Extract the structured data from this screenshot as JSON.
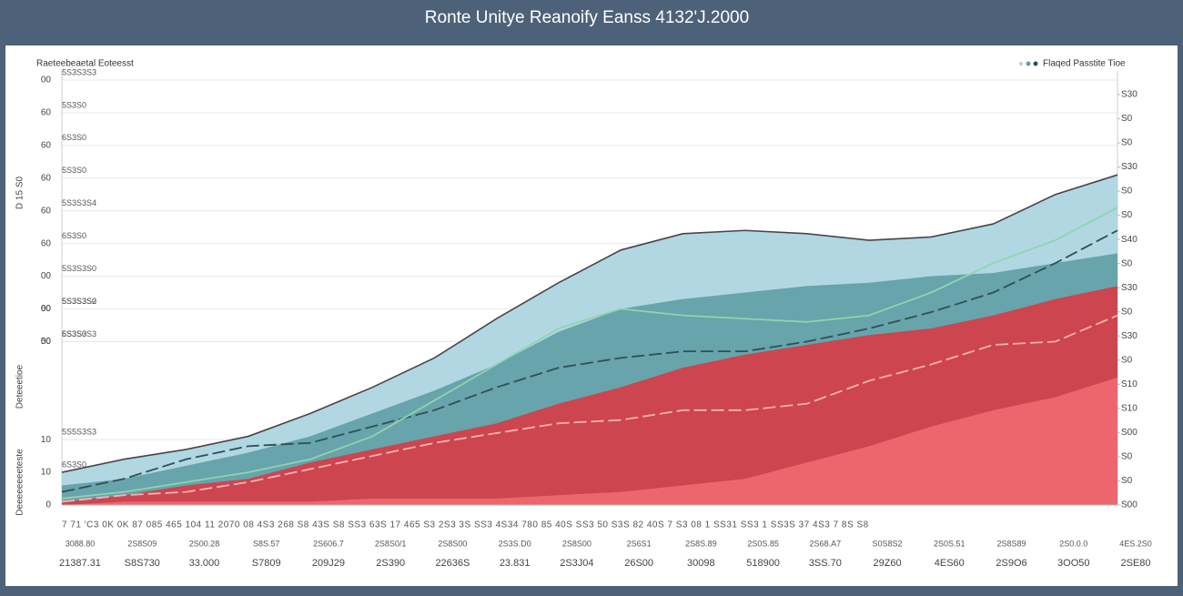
{
  "chart_data": {
    "type": "area",
    "title": "Ronte Unitye Reanoify Eanss 4132'J.2000",
    "subtitle": "Raeteebeaetal Eoteesst",
    "legend": {
      "label": "Flaqed Passtite Tioe",
      "position": "upper right"
    },
    "ylabel_parts": [
      "D 15 S0",
      "Deteeetioe",
      "Deeeeeeeeteste"
    ],
    "categories": [
      "21387.31",
      "S8S730",
      "33.000",
      "S7809",
      "209J29",
      "2S390",
      "22636S",
      "23.831",
      "2S3J04",
      "26S00",
      "30098",
      "518900",
      "3SS.70",
      "29Z60",
      "4ES60",
      "2S9O6",
      "3OO50",
      "2SE80"
    ],
    "x_sublabels": [
      "3088.80",
      "2S8S09",
      "2S00.28",
      "S8S.57",
      "2S606.7",
      "2S8S0/1",
      "2S8S00",
      "2S3S.D0",
      "2S8S00",
      "2S6S1",
      "2S8S.89",
      "2S0S.85",
      "2S68.A7",
      "S0S8S2",
      "2S0S.51",
      "2S8S89",
      "2S0.0.0",
      "4ES.2S0"
    ],
    "x_minor_labels": "7  71  'C3  0K  0K  87  085  465  104  11  2070  08  4S3  268  S8  43S  S8  SS3  63S  17  465  S3  2S3 3S  SS3  4S34  780  85 40S  SS3  50  S3S  82  40S 7  S3  08  1 SS31  SS3  1 SS3S  37  4S3 7  8S  S8",
    "ylim": [
      0,
      130
    ],
    "yticks": [
      0,
      10,
      {
        "value": 20,
        "label": "10"
      },
      50,
      60,
      {
        "value": 50,
        "label": "00"
      },
      {
        "value": 60,
        "label": "00"
      },
      {
        "value": 70,
        "label": "00"
      },
      {
        "value": 80,
        "label": "60"
      },
      {
        "value": 90,
        "label": "60"
      },
      {
        "value": 100,
        "label": "60"
      },
      {
        "value": 110,
        "label": "60"
      },
      {
        "value": 120,
        "label": "60"
      },
      {
        "value": 130,
        "label": "00"
      }
    ],
    "inner_labels": [
      "5S6S0",
      "6S3S0",
      "5S5S3S3",
      "5S3S3S3",
      "5S3S3S0",
      "6S3S0",
      "5S3S3S2",
      "5S3S3S0",
      "6S3S0",
      "5S3S3S4",
      "5S3S0",
      "6S3S0",
      "5S3S0",
      "5S3S3S3"
    ],
    "y2lim": [
      0,
      17.6
    ],
    "y2ticks": [
      {
        "value": 0,
        "label": "S00"
      },
      {
        "value": 1,
        "label": "S0"
      },
      {
        "value": 2,
        "label": "S0"
      },
      {
        "value": 3,
        "label": "S00"
      },
      {
        "value": 4,
        "label": "S10"
      },
      {
        "value": 5,
        "label": "S10"
      },
      {
        "value": 6,
        "label": "S0"
      },
      {
        "value": 7,
        "label": "S30"
      },
      {
        "value": 8,
        "label": "S0"
      },
      {
        "value": 9,
        "label": "S30"
      },
      {
        "value": 10,
        "label": "S0"
      },
      {
        "value": 11,
        "label": "S40"
      },
      {
        "value": 12,
        "label": "S0"
      },
      {
        "value": 13,
        "label": "S0"
      },
      {
        "value": 14,
        "label": "S30"
      },
      {
        "value": 15,
        "label": "S0"
      },
      {
        "value": 16,
        "label": "S0"
      },
      {
        "value": 17,
        "label": "S30"
      }
    ],
    "grid": true,
    "series": [
      {
        "color": "#a9d3df",
        "kind": "area",
        "values": [
          10,
          14,
          17,
          21,
          28,
          36,
          45,
          57,
          68,
          78,
          83,
          84,
          83,
          81,
          82,
          86,
          95,
          101
        ]
      },
      {
        "color": "#5f9fa5",
        "kind": "area",
        "values": [
          6,
          8,
          12,
          16,
          21,
          28,
          35,
          43,
          53,
          60,
          63,
          65,
          67,
          68,
          70,
          71,
          74,
          77
        ]
      },
      {
        "color": "#d83b45",
        "kind": "area",
        "values": [
          1,
          3,
          6,
          8,
          13,
          17,
          21,
          25,
          31,
          36,
          42,
          46,
          49,
          52,
          54,
          58,
          63,
          67
        ]
      },
      {
        "color": "#f06a70",
        "kind": "area",
        "values": [
          0,
          1,
          1,
          1,
          1,
          2,
          2,
          2,
          3,
          4,
          6,
          8,
          13,
          18,
          24,
          29,
          33,
          39
        ]
      },
      {
        "color": "#2f4f55",
        "kind": "line",
        "dash": true,
        "values": [
          4,
          8,
          14,
          18,
          19,
          24,
          29,
          36,
          42,
          45,
          47,
          47,
          50,
          54,
          59,
          65,
          74,
          84
        ]
      },
      {
        "color": "#8fd4b0",
        "kind": "line",
        "dash": false,
        "values": [
          2,
          4,
          7,
          10,
          14,
          21,
          32,
          43,
          54,
          60,
          58,
          57,
          56,
          58,
          65,
          74,
          81,
          91
        ]
      },
      {
        "color": "#f7b3b5",
        "kind": "line",
        "dash": true,
        "values": [
          1,
          3,
          4,
          7,
          11,
          15,
          19,
          22,
          25,
          26,
          29,
          29,
          31,
          38,
          43,
          49,
          50,
          58
        ]
      }
    ]
  }
}
